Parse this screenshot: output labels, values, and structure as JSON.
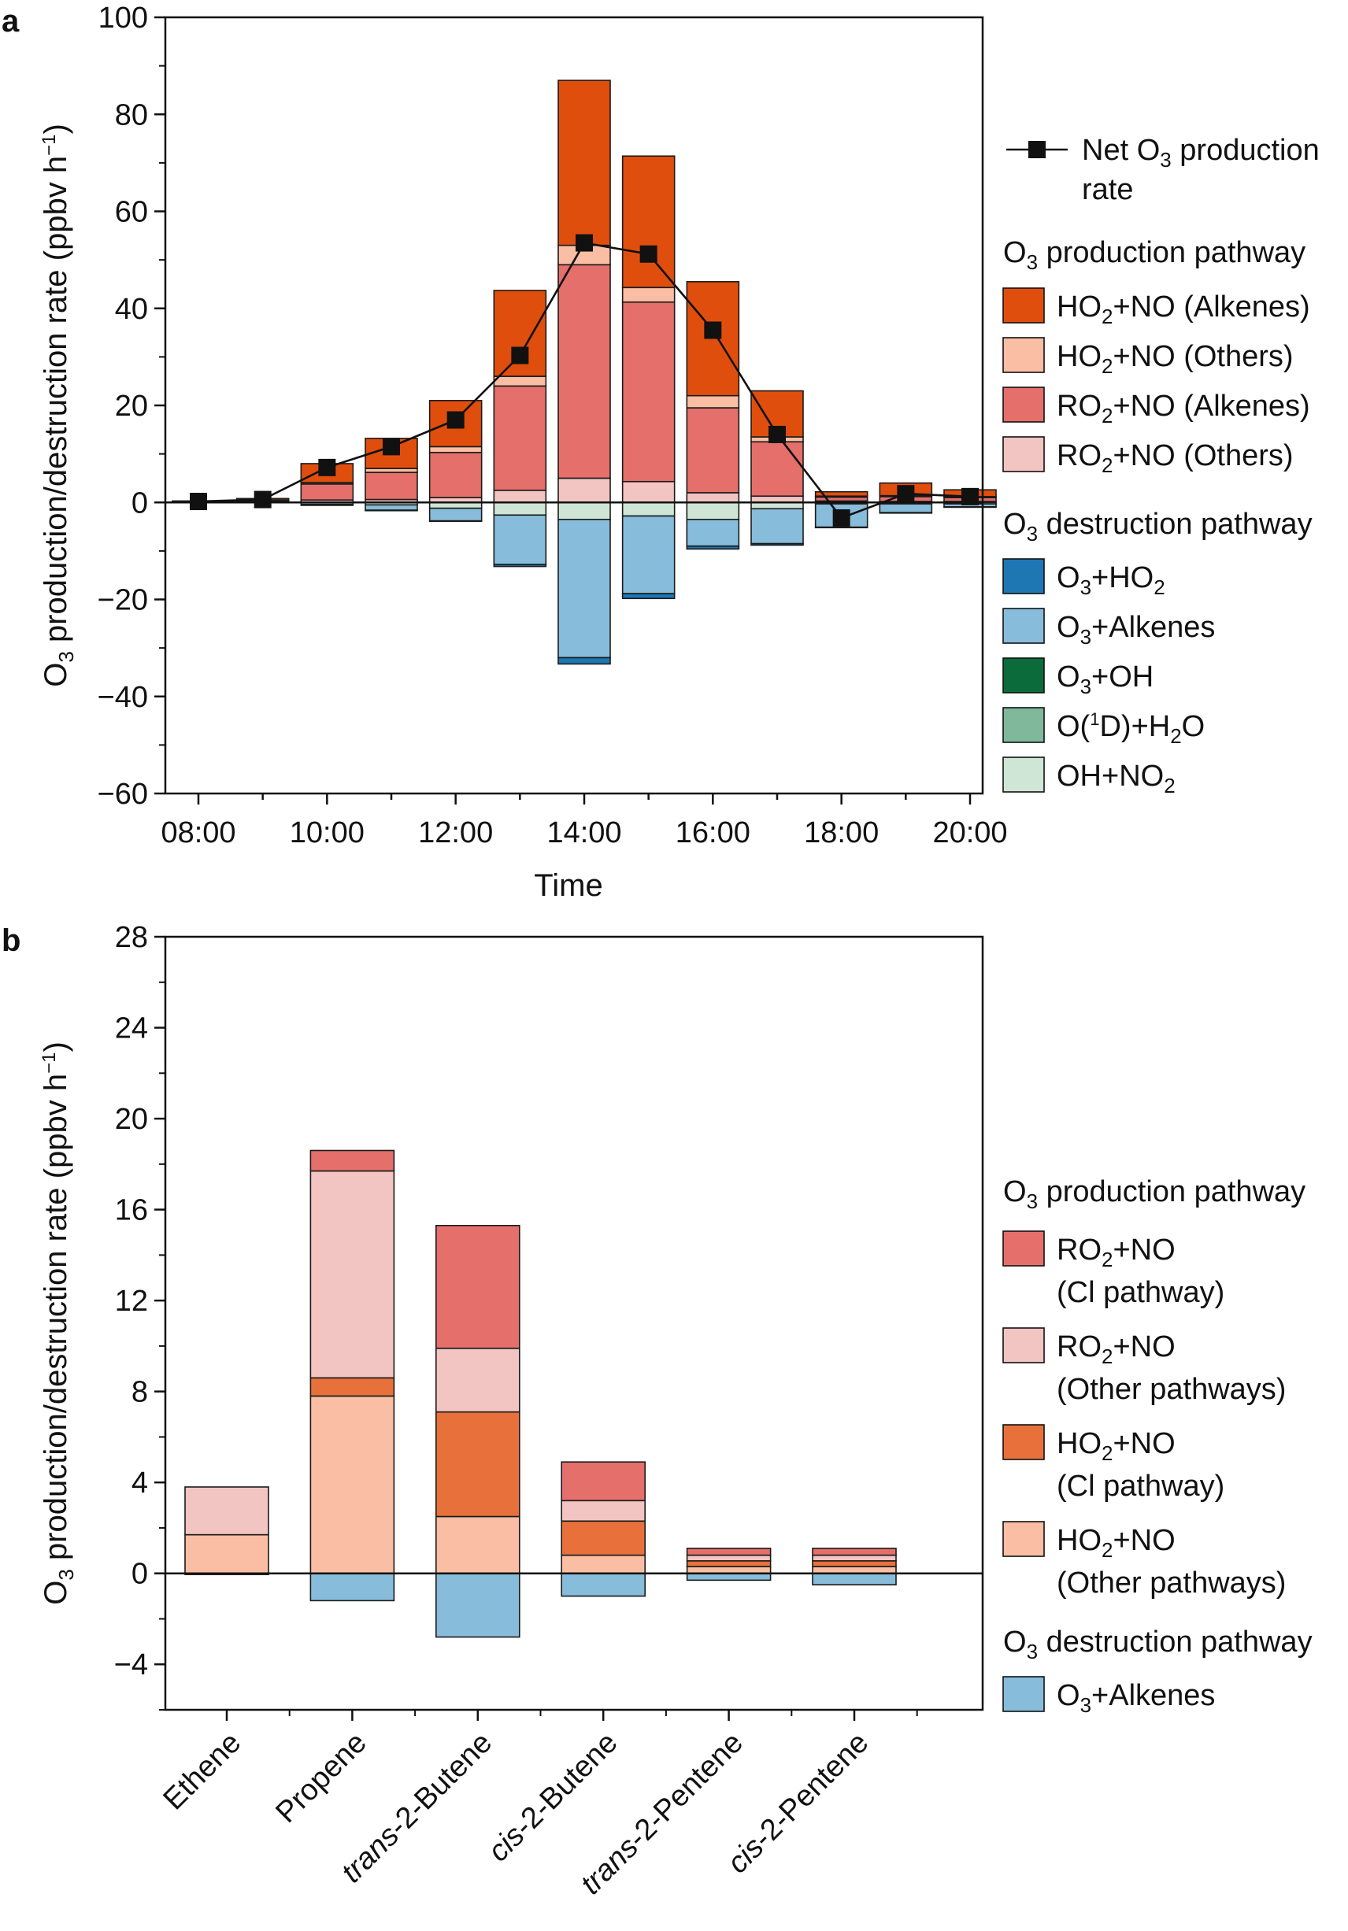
{
  "chart_data": [
    {
      "panel": "a",
      "type": "bar",
      "stacked": true,
      "xlabel": "Time",
      "ylabel": "O₃ production/destruction rate (ppbv h⁻¹)",
      "ylim": [
        -60,
        100
      ],
      "yticks": [
        -60,
        -40,
        -20,
        0,
        20,
        40,
        60,
        80,
        100
      ],
      "x": [
        "08:00",
        "09:00",
        "10:00",
        "11:00",
        "12:00",
        "13:00",
        "14:00",
        "15:00",
        "16:00",
        "17:00",
        "18:00",
        "19:00",
        "20:00"
      ],
      "xtick_labels": [
        "08:00",
        "10:00",
        "12:00",
        "14:00",
        "16:00",
        "18:00",
        "20:00"
      ],
      "legend_line": "Net O₃ production rate",
      "production_heading": "O₃ production pathway",
      "destruction_heading": "O₃ destruction pathway",
      "production_series": [
        {
          "name": "RO₂+NO (Others)",
          "color": "#f2c4c2",
          "values": [
            0.1,
            0.2,
            0.5,
            0.6,
            1.0,
            2.5,
            5.0,
            4.3,
            2.0,
            1.3,
            0.3,
            0.2,
            0.2
          ]
        },
        {
          "name": "RO₂+NO (Alkenes)",
          "color": "#e56f6b",
          "values": [
            0.1,
            0.2,
            3.3,
            5.6,
            9.3,
            21.5,
            44.0,
            37.0,
            17.5,
            11.2,
            0.8,
            1.0,
            0.8
          ]
        },
        {
          "name": "HO₂+NO (Others)",
          "color": "#f9bea3",
          "values": [
            0.05,
            0.1,
            0.3,
            0.8,
            1.2,
            2.0,
            4.0,
            3.0,
            2.5,
            1.0,
            0.2,
            0.2,
            0.2
          ]
        },
        {
          "name": "HO₂+NO (Alkenes)",
          "color": "#e04e0e",
          "values": [
            0.05,
            0.3,
            3.9,
            6.2,
            9.5,
            17.7,
            34.0,
            27.1,
            23.5,
            9.5,
            0.9,
            2.6,
            1.4
          ]
        }
      ],
      "destruction_series": [
        {
          "name": "OH+NO₂",
          "color": "#cfe6d6",
          "values": [
            0,
            0,
            0.4,
            0.5,
            1.2,
            2.6,
            3.5,
            2.8,
            3.5,
            1.3,
            0.3,
            0.3,
            0.3
          ]
        },
        {
          "name": "O(¹D)+H₂O",
          "color": "#7fb89a",
          "values": [
            0,
            0,
            0,
            0,
            0,
            0,
            0,
            0,
            0,
            0,
            0,
            0,
            0
          ]
        },
        {
          "name": "O₃+OH",
          "color": "#0b6b3a",
          "values": [
            0,
            0,
            0,
            0,
            0,
            0,
            0,
            0,
            0,
            0,
            0,
            0,
            0
          ]
        },
        {
          "name": "O₃+Alkenes",
          "color": "#87bcdb",
          "values": [
            0,
            0,
            0.2,
            1.1,
            2.6,
            10.2,
            28.5,
            16.0,
            5.5,
            7.2,
            4.8,
            1.8,
            0.6
          ]
        },
        {
          "name": "O₃+HO₂",
          "color": "#1e76b3",
          "values": [
            0,
            0,
            0,
            0.1,
            0.1,
            0.4,
            1.3,
            1.0,
            0.6,
            0.3,
            0.1,
            0.1,
            0.1
          ]
        }
      ],
      "net_line": {
        "name": "Net O₃ production rate",
        "values": [
          0.2,
          0.6,
          7.2,
          11.5,
          17.0,
          30.3,
          53.5,
          51.2,
          35.5,
          14.0,
          -3.2,
          1.8,
          1.2
        ]
      }
    },
    {
      "panel": "b",
      "type": "bar",
      "stacked": true,
      "xlabel": "",
      "ylabel": "O₃ production/destruction rate (ppbv h⁻¹)",
      "ylim": [
        -6,
        28
      ],
      "yticks": [
        -4,
        0,
        4,
        8,
        12,
        16,
        20,
        24,
        28
      ],
      "categories": [
        "Ethene",
        "Propene",
        "trans-2-Butene",
        "cis-2-Butene",
        "trans-2-Pentene",
        "cis-2-Pentene"
      ],
      "category_labels": [
        {
          "italic": "",
          "rest": "Ethene"
        },
        {
          "italic": "",
          "rest": "Propene"
        },
        {
          "italic": "trans",
          "rest": "-2-Butene"
        },
        {
          "italic": "cis",
          "rest": "-2-Butene"
        },
        {
          "italic": "trans",
          "rest": "-2-Pentene"
        },
        {
          "italic": "cis",
          "rest": "-2-Pentene"
        }
      ],
      "production_heading": "O₃ production pathway",
      "destruction_heading": "O₃ destruction pathway",
      "production_series": [
        {
          "name": "HO₂+NO (Other pathways)",
          "line1": "HO₂+NO",
          "line2": "(Other pathways)",
          "color": "#f9bea3",
          "values": [
            1.7,
            7.8,
            2.5,
            0.8,
            0.3,
            0.3
          ]
        },
        {
          "name": "HO₂+NO (Cl pathway)",
          "line1": "HO₂+NO",
          "line2": "(Cl pathway)",
          "color": "#e8713b",
          "values": [
            0,
            0.8,
            4.6,
            1.5,
            0.25,
            0.25
          ]
        },
        {
          "name": "RO₂+NO (Other pathways)",
          "line1": "RO₂+NO",
          "line2": "(Other pathways)",
          "color": "#f2c4c2",
          "values": [
            2.1,
            9.1,
            2.8,
            0.9,
            0.25,
            0.25
          ]
        },
        {
          "name": "RO₂+NO (Cl pathway)",
          "line1": "RO₂+NO",
          "line2": "(Cl pathway)",
          "color": "#e56f6b",
          "values": [
            0,
            0.9,
            5.4,
            1.7,
            0.3,
            0.3
          ]
        }
      ],
      "destruction_series": [
        {
          "name": "O₃+Alkenes",
          "color": "#87bcdb",
          "values": [
            0.05,
            1.2,
            2.8,
            1.0,
            0.3,
            0.5
          ]
        }
      ]
    }
  ]
}
